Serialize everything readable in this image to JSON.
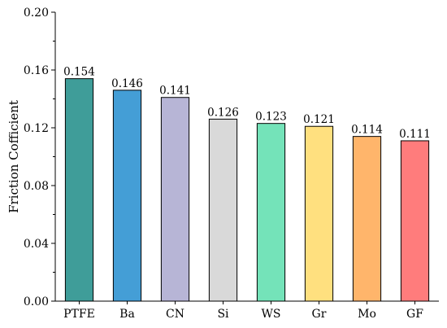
{
  "chart_data": {
    "type": "bar",
    "categories": [
      "PTFE",
      "Ba",
      "CN",
      "Si",
      "WS",
      "Gr",
      "Mo",
      "GF"
    ],
    "values": [
      0.154,
      0.146,
      0.141,
      0.126,
      0.123,
      0.121,
      0.114,
      0.111
    ],
    "data_labels": [
      "0.154",
      "0.146",
      "0.141",
      "0.126",
      "0.123",
      "0.121",
      "0.114",
      "0.111"
    ],
    "colors": [
      "#3f9d99",
      "#449ed6",
      "#b7b5d6",
      "#d9d9d9",
      "#74e3b9",
      "#ffe07f",
      "#ffb56b",
      "#ff7c7c"
    ],
    "title": "",
    "xlabel": "",
    "ylabel": "Friction Cofficient",
    "ylim": [
      0,
      0.2
    ],
    "yticks": [
      0.0,
      0.04,
      0.08,
      0.12,
      0.16,
      0.2
    ],
    "ytick_labels": [
      "0.00",
      "0.04",
      "0.08",
      "0.12",
      "0.16",
      "0.20"
    ],
    "grid": false,
    "legend": "none"
  }
}
